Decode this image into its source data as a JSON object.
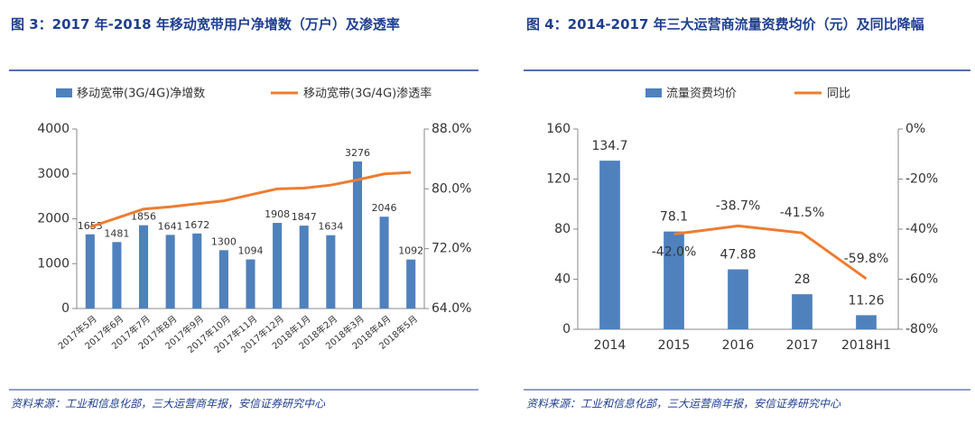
{
  "chart_data": [
    {
      "type": "bar",
      "title": "图 3：2017 年-2018 年移动宽带用户净增数（万户）及渗透率",
      "categories": [
        "2017年5月",
        "2017年6月",
        "2017年7月",
        "2017年8月",
        "2017年9月",
        "2017年10月",
        "2017年11月",
        "2017年12月",
        "2018年1月",
        "2018年2月",
        "2018年3月",
        "2018年4月",
        "2018年5月"
      ],
      "series": [
        {
          "name": "移动宽带(3G/4G)净增数",
          "type": "bar",
          "color": "#4f81bd",
          "values": [
            1653,
            1481,
            1856,
            1641,
            1672,
            1300,
            1094,
            1908,
            1847,
            1634,
            3276,
            2046,
            1092
          ]
        },
        {
          "name": "移动宽带(3G/4G)渗透率",
          "type": "line",
          "axis": "y2",
          "color": "#ed7d31",
          "values": [
            74.9,
            76.1,
            77.3,
            77.6,
            78.0,
            78.4,
            79.2,
            80.0,
            80.1,
            80.5,
            81.2,
            82.0,
            82.2
          ]
        }
      ],
      "ylim": [
        0,
        4000
      ],
      "yticks": [
        0,
        1000,
        2000,
        3000,
        4000
      ],
      "y2lim": [
        64,
        88
      ],
      "y2ticks": [
        {
          "value": 64,
          "label": "64.0%"
        },
        {
          "value": 72,
          "label": "72.0%"
        },
        {
          "value": 80,
          "label": "80.0%"
        },
        {
          "value": 88,
          "label": "88.0%"
        }
      ],
      "source": "资料来源：工业和信息化部，三大运营商年报，安信证券研究中心"
    },
    {
      "type": "bar",
      "title": "图 4：2014-2017 年三大运营商流量资费均价（元）及同比降幅",
      "categories": [
        "2014",
        "2015",
        "2016",
        "2017",
        "2018H1"
      ],
      "series": [
        {
          "name": "流量资费均价",
          "type": "bar",
          "color": "#4f81bd",
          "values": [
            134.7,
            78.1,
            47.88,
            28,
            11.26
          ]
        },
        {
          "name": "同比",
          "type": "line",
          "axis": "y2",
          "color": "#ed7d31",
          "values": [
            null,
            -42.0,
            -38.7,
            -41.5,
            -59.8
          ],
          "value_labels": [
            null,
            "-42.0%",
            "-38.7%",
            "-41.5%",
            "-59.8%"
          ]
        }
      ],
      "ylim": [
        0,
        160
      ],
      "yticks": [
        0,
        40,
        80,
        120,
        160
      ],
      "y2lim": [
        -80,
        0
      ],
      "y2ticks": [
        {
          "value": -80,
          "label": "-80%"
        },
        {
          "value": -60,
          "label": "-60%"
        },
        {
          "value": -40,
          "label": "-40%"
        },
        {
          "value": -20,
          "label": "-20%"
        },
        {
          "value": 0,
          "label": "0%"
        }
      ],
      "source": "资料来源：工业和信息化部，三大运营商年报，安信证券研究中心"
    }
  ]
}
